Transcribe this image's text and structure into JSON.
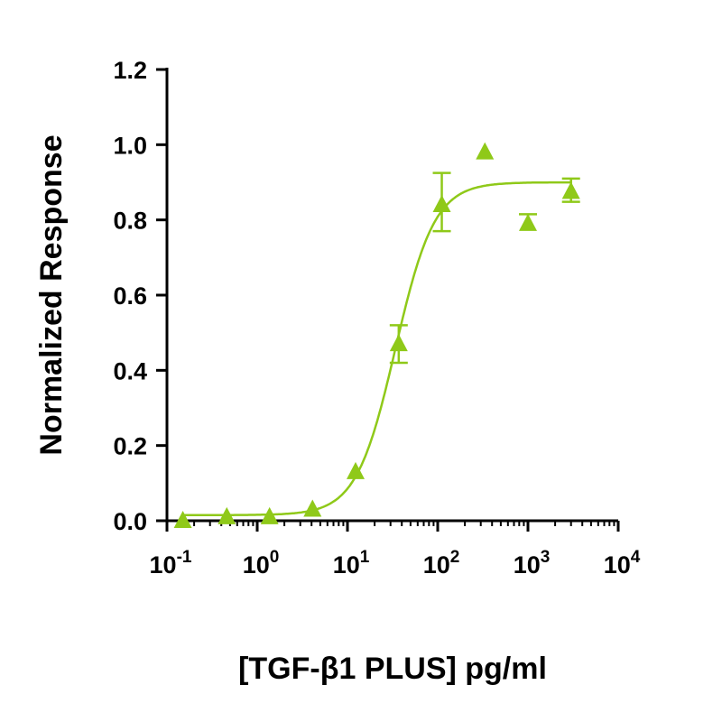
{
  "chart_data": {
    "type": "scatter",
    "xlabel": "[TGF-β1 PLUS] pg/ml",
    "ylabel": "Normalized Response",
    "xscale": "log",
    "xlim": [
      0.1,
      10000
    ],
    "ylim": [
      0,
      1.2
    ],
    "xticks": [
      {
        "base": "10",
        "exp": "-1"
      },
      {
        "base": "10",
        "exp": "0"
      },
      {
        "base": "10",
        "exp": "1"
      },
      {
        "base": "10",
        "exp": "2"
      },
      {
        "base": "10",
        "exp": "3"
      },
      {
        "base": "10",
        "exp": "4"
      }
    ],
    "yticks": [
      "0.0",
      "0.2",
      "0.4",
      "0.6",
      "0.8",
      "1.0",
      "1.2"
    ],
    "grid": false,
    "color": "#8fc919",
    "marker": "triangle",
    "points": [
      {
        "x": 0.15,
        "y": 0.0
      },
      {
        "x": 0.46,
        "y": 0.01
      },
      {
        "x": 1.37,
        "y": 0.01
      },
      {
        "x": 4.1,
        "y": 0.03
      },
      {
        "x": 12.3,
        "y": 0.13
      },
      {
        "x": 37,
        "y": 0.47,
        "err_low": 0.42,
        "err_high": 0.52
      },
      {
        "x": 111,
        "y": 0.84,
        "err_low": 0.77,
        "err_high": 0.925
      },
      {
        "x": 333,
        "y": 0.98
      },
      {
        "x": 1000,
        "y": 0.79,
        "err_high": 0.815
      },
      {
        "x": 3000,
        "y": 0.875,
        "err_low": 0.848,
        "err_high": 0.91
      }
    ],
    "fit": {
      "model": "4PL",
      "bottom": 0.015,
      "top": 0.9,
      "ec50": 34,
      "hill": 2.0
    }
  }
}
